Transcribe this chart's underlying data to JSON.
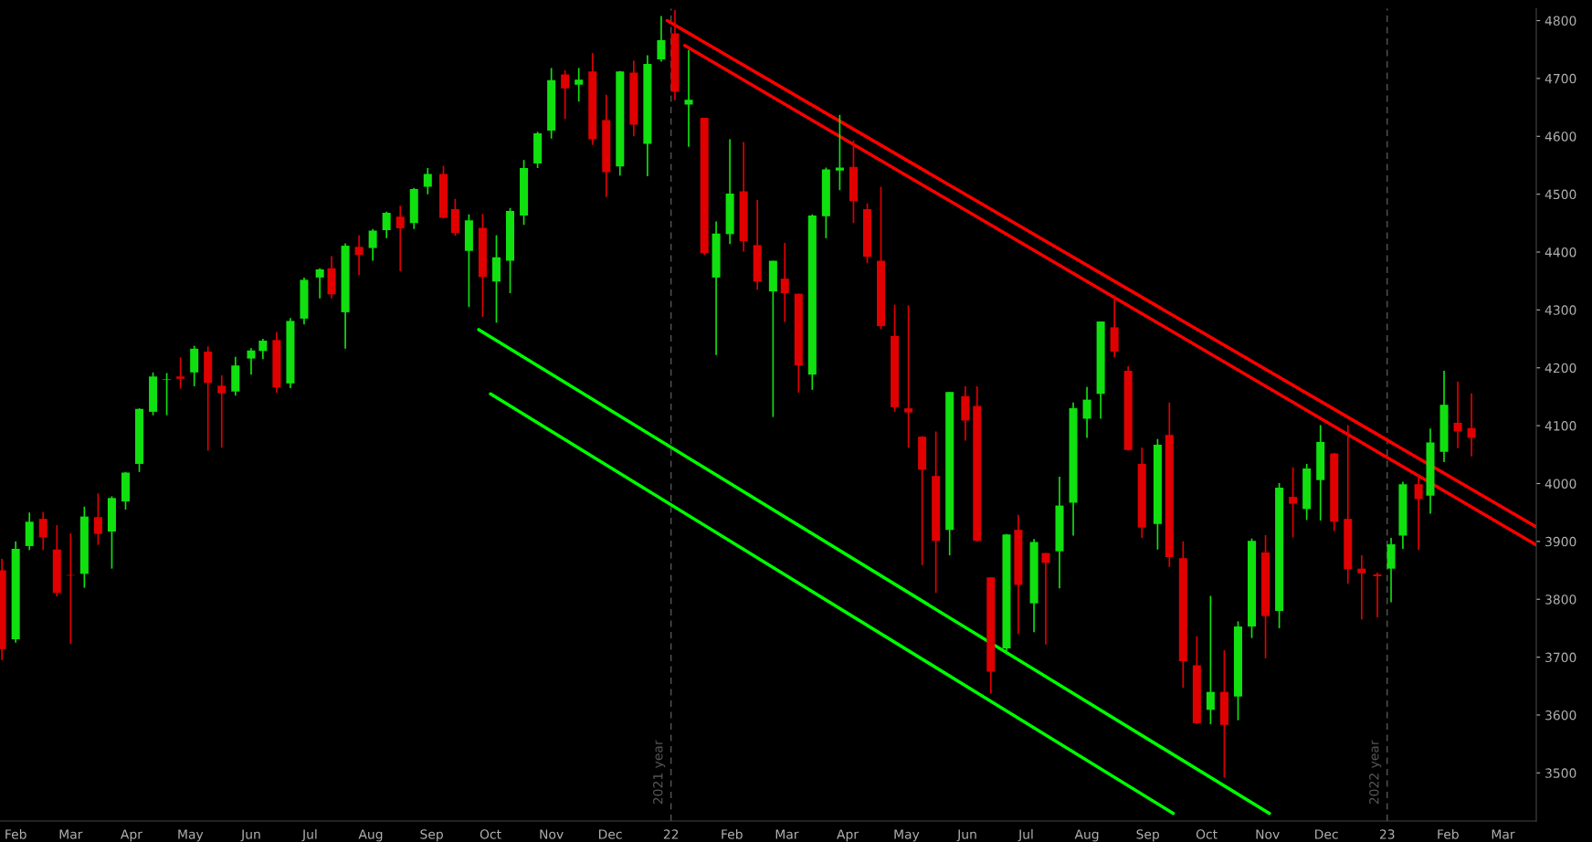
{
  "chart_data": {
    "type": "candlestick",
    "x": [
      "2021-01-25",
      "2021-02-01",
      "2021-02-08",
      "2021-02-15",
      "2021-02-22",
      "2021-03-01",
      "2021-03-08",
      "2021-03-15",
      "2021-03-22",
      "2021-03-29",
      "2021-04-05",
      "2021-04-12",
      "2021-04-19",
      "2021-04-26",
      "2021-05-03",
      "2021-05-10",
      "2021-05-17",
      "2021-05-24",
      "2021-06-01",
      "2021-06-07",
      "2021-06-14",
      "2021-06-21",
      "2021-06-28",
      "2021-07-06",
      "2021-07-12",
      "2021-07-19",
      "2021-07-26",
      "2021-08-02",
      "2021-08-09",
      "2021-08-16",
      "2021-08-23",
      "2021-08-30",
      "2021-09-07",
      "2021-09-13",
      "2021-09-20",
      "2021-09-27",
      "2021-10-04",
      "2021-10-11",
      "2021-10-18",
      "2021-10-25",
      "2021-11-01",
      "2021-11-08",
      "2021-11-15",
      "2021-11-22",
      "2021-11-29",
      "2021-12-06",
      "2021-12-13",
      "2021-12-20",
      "2021-12-27",
      "2022-01-03",
      "2022-01-10",
      "2022-01-18",
      "2022-01-24",
      "2022-01-31",
      "2022-02-07",
      "2022-02-14",
      "2022-02-22",
      "2022-02-28",
      "2022-03-07",
      "2022-03-14",
      "2022-03-21",
      "2022-03-28",
      "2022-04-04",
      "2022-04-11",
      "2022-04-18",
      "2022-04-25",
      "2022-05-02",
      "2022-05-09",
      "2022-05-16",
      "2022-05-23",
      "2022-05-31",
      "2022-06-06",
      "2022-06-13",
      "2022-06-21",
      "2022-06-27",
      "2022-07-05",
      "2022-07-11",
      "2022-07-18",
      "2022-07-25",
      "2022-08-01",
      "2022-08-08",
      "2022-08-15",
      "2022-08-22",
      "2022-08-29",
      "2022-09-06",
      "2022-09-12",
      "2022-09-19",
      "2022-09-26",
      "2022-10-03",
      "2022-10-10",
      "2022-10-17",
      "2022-10-24",
      "2022-10-31",
      "2022-11-07",
      "2022-11-14",
      "2022-11-21",
      "2022-11-28",
      "2022-12-05",
      "2022-12-12",
      "2022-12-19",
      "2022-12-27",
      "2023-01-03",
      "2023-01-09",
      "2023-01-17",
      "2023-01-23",
      "2023-01-30",
      "2023-02-06",
      "2023-02-13"
    ],
    "ohlc": [
      [
        3850,
        3870,
        3695,
        3714
      ],
      [
        3731,
        3900,
        3725,
        3887
      ],
      [
        3892,
        3950,
        3885,
        3934
      ],
      [
        3939,
        3951,
        3885,
        3907
      ],
      [
        3886,
        3928,
        3805,
        3811
      ],
      [
        3842,
        3914,
        3723,
        3841
      ],
      [
        3844,
        3960,
        3820,
        3943
      ],
      [
        3942,
        3983,
        3894,
        3913
      ],
      [
        3917,
        3978,
        3853,
        3975
      ],
      [
        3969,
        4020,
        3955,
        4019
      ],
      [
        4034,
        4130,
        4020,
        4129
      ],
      [
        4124,
        4192,
        4118,
        4185
      ],
      [
        4179,
        4191,
        4118,
        4180
      ],
      [
        4185,
        4218,
        4164,
        4181
      ],
      [
        4192,
        4238,
        4168,
        4233
      ],
      [
        4228,
        4237,
        4057,
        4174
      ],
      [
        4169,
        4187,
        4062,
        4156
      ],
      [
        4159,
        4219,
        4152,
        4204
      ],
      [
        4216,
        4234,
        4188,
        4230
      ],
      [
        4229,
        4250,
        4215,
        4247
      ],
      [
        4248,
        4262,
        4157,
        4166
      ],
      [
        4173,
        4286,
        4165,
        4281
      ],
      [
        4285,
        4356,
        4275,
        4352
      ],
      [
        4356,
        4372,
        4320,
        4370
      ],
      [
        4372,
        4393,
        4320,
        4327
      ],
      [
        4296,
        4415,
        4233,
        4411
      ],
      [
        4409,
        4429,
        4360,
        4395
      ],
      [
        4407,
        4440,
        4385,
        4437
      ],
      [
        4438,
        4470,
        4424,
        4468
      ],
      [
        4461,
        4480,
        4367,
        4441
      ],
      [
        4450,
        4511,
        4440,
        4509
      ],
      [
        4513,
        4545,
        4500,
        4535
      ],
      [
        4535,
        4549,
        4458,
        4459
      ],
      [
        4474,
        4492,
        4428,
        4433
      ],
      [
        4402,
        4465,
        4305,
        4455
      ],
      [
        4442,
        4466,
        4288,
        4357
      ],
      [
        4349,
        4429,
        4278,
        4391
      ],
      [
        4385,
        4476,
        4329,
        4471
      ],
      [
        4463,
        4559,
        4447,
        4545
      ],
      [
        4553,
        4608,
        4545,
        4605
      ],
      [
        4610,
        4718,
        4596,
        4697
      ],
      [
        4707,
        4714,
        4630,
        4683
      ],
      [
        4689,
        4718,
        4660,
        4698
      ],
      [
        4712,
        4744,
        4585,
        4595
      ],
      [
        4628,
        4672,
        4495,
        4538
      ],
      [
        4548,
        4713,
        4532,
        4712
      ],
      [
        4710,
        4731,
        4600,
        4620
      ],
      [
        4587,
        4740,
        4531,
        4725
      ],
      [
        4733,
        4808,
        4729,
        4766
      ],
      [
        4778,
        4818,
        4662,
        4677
      ],
      [
        4655,
        4749,
        4582,
        4663
      ],
      [
        4632,
        4632,
        4395,
        4398
      ],
      [
        4356,
        4453,
        4222,
        4432
      ],
      [
        4431,
        4595,
        4414,
        4501
      ],
      [
        4505,
        4590,
        4401,
        4419
      ],
      [
        4412,
        4490,
        4335,
        4349
      ],
      [
        4332,
        4385,
        4115,
        4385
      ],
      [
        4354,
        4416,
        4279,
        4329
      ],
      [
        4328,
        4328,
        4157,
        4204
      ],
      [
        4188,
        4465,
        4162,
        4463
      ],
      [
        4462,
        4546,
        4424,
        4543
      ],
      [
        4541,
        4637,
        4507,
        4546
      ],
      [
        4547,
        4593,
        4450,
        4488
      ],
      [
        4474,
        4484,
        4381,
        4392
      ],
      [
        4385,
        4513,
        4267,
        4272
      ],
      [
        4255,
        4309,
        4124,
        4132
      ],
      [
        4130,
        4308,
        4062,
        4123
      ],
      [
        4081,
        4082,
        3859,
        4024
      ],
      [
        4013,
        4090,
        3811,
        3901
      ],
      [
        3920,
        4158,
        3876,
        4158
      ],
      [
        4151,
        4168,
        4074,
        4109
      ],
      [
        4134,
        4168,
        3900,
        3901
      ],
      [
        3838,
        3838,
        3637,
        3675
      ],
      [
        3715,
        3913,
        3705,
        3912
      ],
      [
        3920,
        3946,
        3740,
        3825
      ],
      [
        3793,
        3904,
        3743,
        3899
      ],
      [
        3880,
        3880,
        3722,
        3863
      ],
      [
        3883,
        4012,
        3819,
        3962
      ],
      [
        3967,
        4140,
        3910,
        4130
      ],
      [
        4112,
        4167,
        4079,
        4145
      ],
      [
        4155,
        4280,
        4112,
        4280
      ],
      [
        4270,
        4325,
        4218,
        4228
      ],
      [
        4195,
        4203,
        4057,
        4058
      ],
      [
        4034,
        4062,
        3906,
        3924
      ],
      [
        3930,
        4077,
        3886,
        4067
      ],
      [
        4084,
        4140,
        3856,
        3873
      ],
      [
        3871,
        3900,
        3647,
        3693
      ],
      [
        3686,
        3736,
        3585,
        3586
      ],
      [
        3609,
        3806,
        3584,
        3640
      ],
      [
        3640,
        3712,
        3492,
        3583
      ],
      [
        3632,
        3762,
        3591,
        3753
      ],
      [
        3753,
        3905,
        3733,
        3901
      ],
      [
        3881,
        3911,
        3698,
        3771
      ],
      [
        3780,
        4001,
        3750,
        3993
      ],
      [
        3977,
        4028,
        3907,
        3965
      ],
      [
        3956,
        4034,
        3937,
        4026
      ],
      [
        4006,
        4101,
        3936,
        4072
      ],
      [
        4052,
        4053,
        3918,
        3934
      ],
      [
        3939,
        4101,
        3827,
        3852
      ],
      [
        3853,
        3876,
        3765,
        3845
      ],
      [
        3843,
        3846,
        3769,
        3840
      ],
      [
        3853,
        3906,
        3795,
        3895
      ],
      [
        3910,
        4003,
        3887,
        3999
      ],
      [
        3999,
        4015,
        3885,
        3973
      ],
      [
        3979,
        4095,
        3948,
        4071
      ],
      [
        4055,
        4195,
        4037,
        4136
      ],
      [
        4105,
        4176,
        4061,
        4090
      ],
      [
        4096,
        4156,
        4047,
        4079
      ]
    ],
    "colors": [
      "#e00000",
      "#10e010",
      "#10e010",
      "#e00000",
      "#e00000",
      "#e00000",
      "#10e010",
      "#e00000",
      "#10e010",
      "#10e010",
      "#10e010",
      "#10e010",
      "#10e010",
      "#e00000",
      "#10e010",
      "#e00000",
      "#e00000",
      "#10e010",
      "#10e010",
      "#10e010",
      "#e00000",
      "#10e010",
      "#10e010",
      "#10e010",
      "#e00000",
      "#10e010",
      "#e00000",
      "#10e010",
      "#10e010",
      "#e00000",
      "#10e010",
      "#10e010",
      "#e00000",
      "#e00000",
      "#10e010",
      "#e00000",
      "#10e010",
      "#10e010",
      "#10e010",
      "#10e010",
      "#10e010",
      "#e00000",
      "#10e010",
      "#e00000",
      "#e00000",
      "#10e010",
      "#e00000",
      "#10e010",
      "#10e010",
      "#e00000",
      "#10e010",
      "#e00000",
      "#10e010",
      "#10e010",
      "#e00000",
      "#e00000",
      "#10e010",
      "#e00000",
      "#e00000",
      "#10e010",
      "#10e010",
      "#10e010",
      "#e00000",
      "#e00000",
      "#e00000",
      "#e00000",
      "#e00000",
      "#e00000",
      "#e00000",
      "#10e010",
      "#e00000",
      "#e00000",
      "#e00000",
      "#10e010",
      "#e00000",
      "#10e010",
      "#e00000",
      "#10e010",
      "#10e010",
      "#10e010",
      "#10e010",
      "#e00000",
      "#e00000",
      "#e00000",
      "#10e010",
      "#e00000",
      "#e00000",
      "#e00000",
      "#10e010",
      "#e00000",
      "#10e010",
      "#10e010",
      "#e00000",
      "#10e010",
      "#e00000",
      "#10e010",
      "#10e010",
      "#e00000",
      "#e00000",
      "#e00000",
      "#e00000",
      "#10e010",
      "#10e010",
      "#e00000",
      "#10e010",
      "#10e010",
      "#e00000",
      "#e00000"
    ],
    "series": [
      {
        "type": "line",
        "color": "#ff0000",
        "x": [
          "2021-12-30",
          "2023-03-18"
        ],
        "values": [
          4800,
          3925
        ]
      },
      {
        "type": "line",
        "color": "#ff0000",
        "x": [
          "2022-01-08",
          "2023-03-18"
        ],
        "values": [
          4757,
          3894
        ]
      },
      {
        "type": "line",
        "color": "#00ff00",
        "x": [
          "2021-09-25",
          "2022-11-02"
        ],
        "values": [
          4266,
          3430
        ]
      },
      {
        "type": "line",
        "color": "#00ff00",
        "x": [
          "2021-10-01",
          "2022-09-14"
        ],
        "values": [
          4155,
          3430
        ]
      }
    ],
    "ref_lines": [
      {
        "axis": "x",
        "value": "2022-01-01",
        "label": "2021 year",
        "color": "#555555",
        "line_style": "dashed"
      },
      {
        "axis": "x",
        "value": "2023-01-01",
        "label": "2022 year",
        "color": "#555555",
        "line_style": "dashed"
      }
    ],
    "xlim": [
      "2021-01-24",
      "2023-03-18"
    ],
    "xticks": [
      {
        "value": "2021-02-01",
        "label": "Feb"
      },
      {
        "value": "2021-03-01",
        "label": "Mar"
      },
      {
        "value": "2021-04-01",
        "label": "Apr"
      },
      {
        "value": "2021-05-01",
        "label": "May"
      },
      {
        "value": "2021-06-01",
        "label": "Jun"
      },
      {
        "value": "2021-07-01",
        "label": "Jul"
      },
      {
        "value": "2021-08-01",
        "label": "Aug"
      },
      {
        "value": "2021-09-01",
        "label": "Sep"
      },
      {
        "value": "2021-10-01",
        "label": "Oct"
      },
      {
        "value": "2021-11-01",
        "label": "Nov"
      },
      {
        "value": "2021-12-01",
        "label": "Dec"
      },
      {
        "value": "2022-01-01",
        "label": "22"
      },
      {
        "value": "2022-02-01",
        "label": "Feb"
      },
      {
        "value": "2022-03-01",
        "label": "Mar"
      },
      {
        "value": "2022-04-01",
        "label": "Apr"
      },
      {
        "value": "2022-05-01",
        "label": "May"
      },
      {
        "value": "2022-06-01",
        "label": "Jun"
      },
      {
        "value": "2022-07-01",
        "label": "Jul"
      },
      {
        "value": "2022-08-01",
        "label": "Aug"
      },
      {
        "value": "2022-09-01",
        "label": "Sep"
      },
      {
        "value": "2022-10-01",
        "label": "Oct"
      },
      {
        "value": "2022-11-01",
        "label": "Nov"
      },
      {
        "value": "2022-12-01",
        "label": "Dec"
      },
      {
        "value": "2023-01-01",
        "label": "23"
      },
      {
        "value": "2023-02-01",
        "label": "Feb"
      },
      {
        "value": "2023-03-01",
        "label": "Mar"
      }
    ],
    "ylim": [
      3417,
      4821
    ],
    "yticks": [
      3500,
      3600,
      3700,
      3800,
      3900,
      4000,
      4100,
      4200,
      4300,
      4400,
      4500,
      4600,
      4700,
      4800
    ],
    "grid": false,
    "legend": false
  }
}
